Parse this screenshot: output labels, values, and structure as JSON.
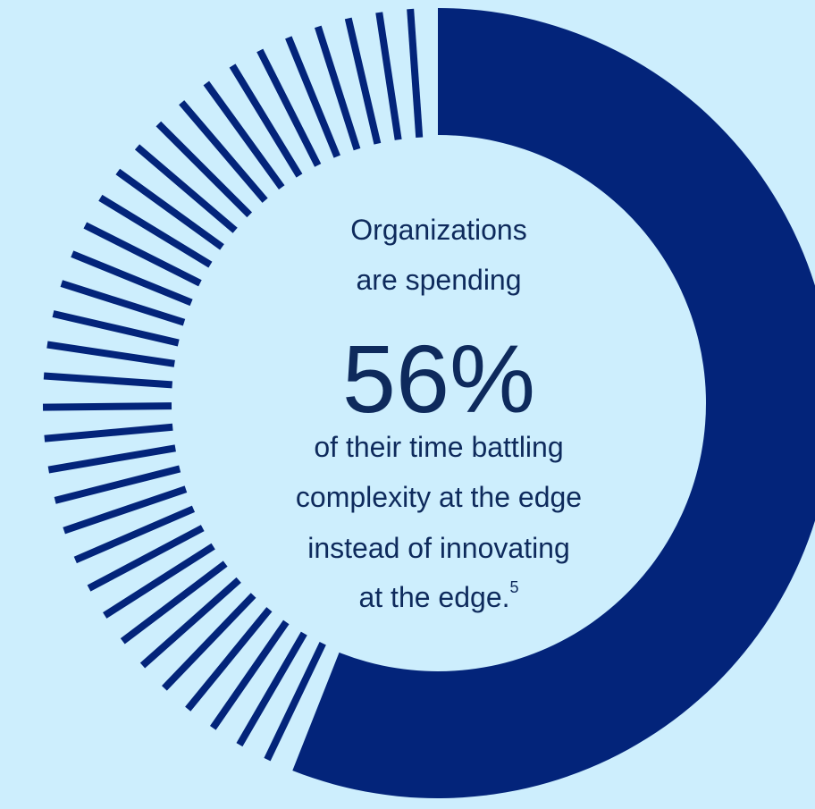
{
  "chart_data": {
    "type": "pie",
    "values": [
      56,
      44
    ],
    "labels": [
      "Battling complexity at the edge",
      "Innovating at the edge"
    ],
    "highlight_value": "56%"
  },
  "text": {
    "line1": "Organizations",
    "line2": "are spending",
    "stat": "56%",
    "line3": "of their time battling",
    "line4": "complexity at the edge",
    "line5": "instead of innovating",
    "line6": "at the edge.",
    "footnote": "5"
  },
  "colors": {
    "background": "#cdeefd",
    "solid": "#03247a",
    "ticks": "#03247a",
    "text": "#0e2a5c"
  }
}
